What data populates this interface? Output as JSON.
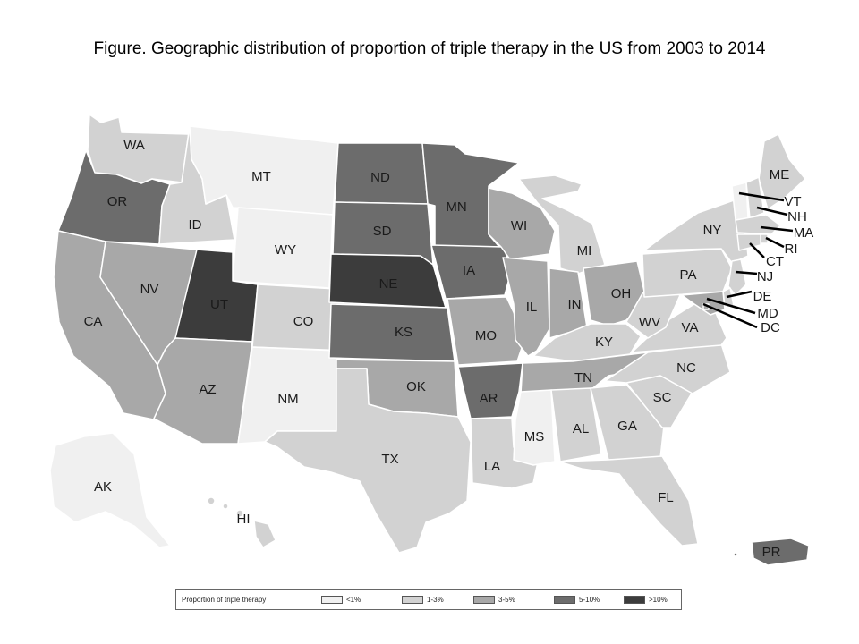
{
  "title": "Figure. Geographic distribution of proportion of triple therapy in the US from 2003 to 2014",
  "categories": {
    "lt1": {
      "label": "<1%",
      "color": "#f0f0f0"
    },
    "c1_3": {
      "label": "1-3%",
      "color": "#d2d2d2"
    },
    "c3_5": {
      "label": "3-5%",
      "color": "#a8a8a8"
    },
    "c5_10": {
      "label": "5-10%",
      "color": "#6c6c6c"
    },
    "gt10": {
      "label": ">10%",
      "color": "#3c3c3c"
    }
  },
  "legend": {
    "title": "Proportion of triple therapy",
    "order": [
      "lt1",
      "c1_3",
      "c3_5",
      "c5_10",
      "gt10"
    ]
  },
  "states": [
    {
      "abbr": "WA",
      "cat": "c1_3"
    },
    {
      "abbr": "OR",
      "cat": "c5_10"
    },
    {
      "abbr": "CA",
      "cat": "c3_5"
    },
    {
      "abbr": "ID",
      "cat": "c1_3"
    },
    {
      "abbr": "NV",
      "cat": "c3_5"
    },
    {
      "abbr": "MT",
      "cat": "lt1"
    },
    {
      "abbr": "WY",
      "cat": "lt1"
    },
    {
      "abbr": "UT",
      "cat": "gt10"
    },
    {
      "abbr": "AZ",
      "cat": "c3_5"
    },
    {
      "abbr": "CO",
      "cat": "c1_3"
    },
    {
      "abbr": "NM",
      "cat": "lt1"
    },
    {
      "abbr": "ND",
      "cat": "c5_10"
    },
    {
      "abbr": "SD",
      "cat": "c5_10"
    },
    {
      "abbr": "NE",
      "cat": "gt10"
    },
    {
      "abbr": "KS",
      "cat": "c5_10"
    },
    {
      "abbr": "OK",
      "cat": "c3_5"
    },
    {
      "abbr": "TX",
      "cat": "c1_3"
    },
    {
      "abbr": "MN",
      "cat": "c5_10"
    },
    {
      "abbr": "IA",
      "cat": "c5_10"
    },
    {
      "abbr": "MO",
      "cat": "c3_5"
    },
    {
      "abbr": "AR",
      "cat": "c5_10"
    },
    {
      "abbr": "LA",
      "cat": "c1_3"
    },
    {
      "abbr": "WI",
      "cat": "c3_5"
    },
    {
      "abbr": "IL",
      "cat": "c3_5"
    },
    {
      "abbr": "MI",
      "cat": "c1_3"
    },
    {
      "abbr": "IN",
      "cat": "c3_5"
    },
    {
      "abbr": "OH",
      "cat": "c3_5"
    },
    {
      "abbr": "KY",
      "cat": "c1_3"
    },
    {
      "abbr": "TN",
      "cat": "c3_5"
    },
    {
      "abbr": "MS",
      "cat": "lt1"
    },
    {
      "abbr": "AL",
      "cat": "c1_3"
    },
    {
      "abbr": "GA",
      "cat": "c1_3"
    },
    {
      "abbr": "FL",
      "cat": "c1_3"
    },
    {
      "abbr": "SC",
      "cat": "c1_3"
    },
    {
      "abbr": "NC",
      "cat": "c1_3"
    },
    {
      "abbr": "VA",
      "cat": "c1_3"
    },
    {
      "abbr": "WV",
      "cat": "c1_3"
    },
    {
      "abbr": "PA",
      "cat": "c1_3"
    },
    {
      "abbr": "NY",
      "cat": "c1_3"
    },
    {
      "abbr": "ME",
      "cat": "c1_3"
    },
    {
      "abbr": "VT",
      "cat": "lt1"
    },
    {
      "abbr": "NH",
      "cat": "c1_3"
    },
    {
      "abbr": "MA",
      "cat": "c1_3"
    },
    {
      "abbr": "RI",
      "cat": "c1_3"
    },
    {
      "abbr": "CT",
      "cat": "c1_3"
    },
    {
      "abbr": "NJ",
      "cat": "c1_3"
    },
    {
      "abbr": "DE",
      "cat": "c1_3"
    },
    {
      "abbr": "MD",
      "cat": "c3_5"
    },
    {
      "abbr": "DC",
      "cat": "c3_5"
    },
    {
      "abbr": "AK",
      "cat": "lt1"
    },
    {
      "abbr": "HI",
      "cat": "c1_3"
    },
    {
      "abbr": "PR",
      "cat": "c5_10"
    }
  ]
}
